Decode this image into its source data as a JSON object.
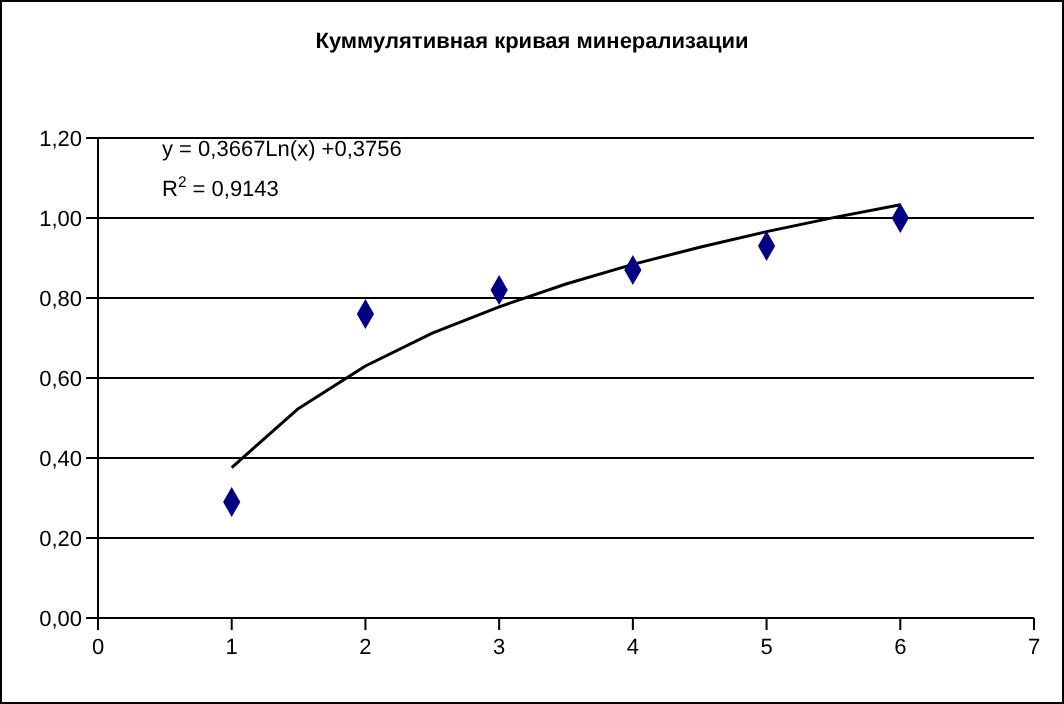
{
  "chart_data": {
    "type": "scatter",
    "title": "Куммулятивная кривая минерализации",
    "x": [
      1,
      2,
      3,
      4,
      5,
      6
    ],
    "marker": "diamond",
    "series": [
      {
        "color": "#000080",
        "values": [
          0.29,
          0.76,
          0.82,
          0.87,
          0.93,
          1.0
        ]
      },
      {
        "type": "line",
        "color": "#000000",
        "marker": "none",
        "line_style": "solid",
        "x": [
          1,
          1.5,
          2,
          2.5,
          3,
          3.5,
          4,
          4.5,
          5,
          5.5,
          6
        ],
        "values": [
          0.376,
          0.524,
          0.63,
          0.712,
          0.778,
          0.835,
          0.884,
          0.927,
          0.966,
          1.001,
          1.033
        ]
      }
    ],
    "xlim": [
      0,
      7
    ],
    "xticks": [
      0,
      1,
      2,
      3,
      4,
      5,
      6,
      7
    ],
    "ylim": [
      0,
      1.2
    ],
    "yticks": [
      {
        "value": 0,
        "label": "0,00"
      },
      {
        "value": 0.2,
        "label": "0,20"
      },
      {
        "value": 0.4,
        "label": "0,40"
      },
      {
        "value": 0.6,
        "label": "0,60"
      },
      {
        "value": 0.8,
        "label": "0,80"
      },
      {
        "value": 1,
        "label": "1,00"
      },
      {
        "value": 1.2,
        "label": "1,20"
      }
    ],
    "grid": "y",
    "legend": false,
    "annotations": [
      "y = 0,3667Ln(x) +0,3756",
      "R$^{2}$ = 0,9143"
    ]
  }
}
